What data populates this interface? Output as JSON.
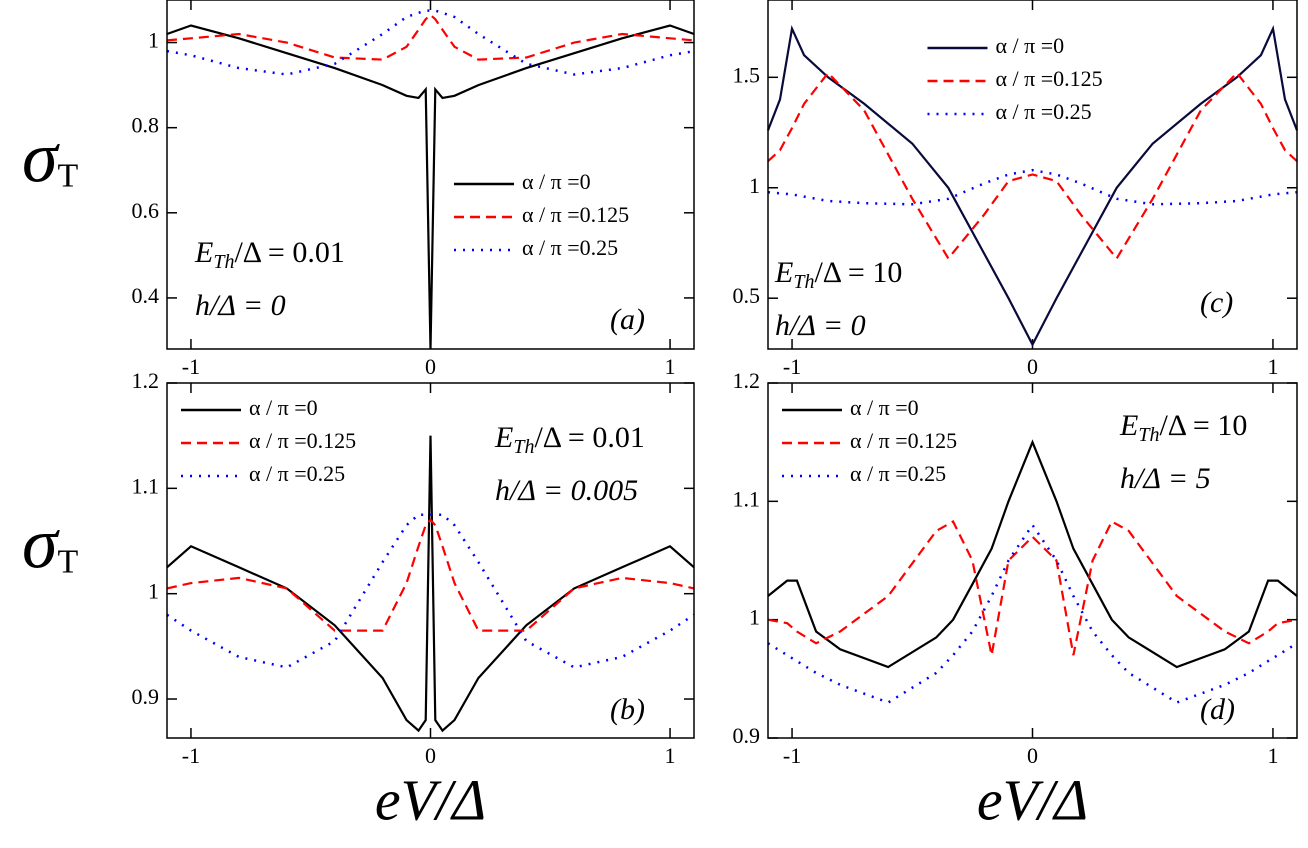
{
  "chart_data": [
    {
      "type": "line",
      "legend": "lower right",
      "ylabel": {
        "text": "σ",
        "sub": "T"
      },
      "annotations": [
        {
          "text": "E",
          "sub": "Th",
          "rest": "/Δ = 0.01"
        },
        {
          "text": "h/Δ = 0"
        },
        {
          "text": "(a)"
        }
      ],
      "xlim": [
        -1.1,
        1.1
      ],
      "xticks": [
        -1,
        0,
        1
      ],
      "ylim": [
        0.28,
        1.1
      ],
      "yticks": [
        0.4,
        0.6,
        0.8,
        1
      ],
      "x": [
        -1.1,
        -1,
        -0.8,
        -0.6,
        -0.4,
        -0.2,
        -0.1,
        -0.05,
        -0.02,
        0,
        0.02,
        0.05,
        0.1,
        0.2,
        0.4,
        0.6,
        0.8,
        1,
        1.1
      ],
      "series": [
        {
          "name": "α / π =0",
          "color": "#000000",
          "dash": "solid",
          "values": [
            1.02,
            1.04,
            1.01,
            0.975,
            0.94,
            0.9,
            0.875,
            0.87,
            0.89,
            0.28,
            0.89,
            0.87,
            0.875,
            0.9,
            0.94,
            0.975,
            1.01,
            1.04,
            1.02
          ]
        },
        {
          "name": "α / π =0.125",
          "color": "#ff0000",
          "dash": "dash",
          "values": [
            1.005,
            1.01,
            1.02,
            1.0,
            0.965,
            0.96,
            0.99,
            1.03,
            1.055,
            1.065,
            1.055,
            1.03,
            0.99,
            0.96,
            0.965,
            1.0,
            1.02,
            1.01,
            1.005
          ]
        },
        {
          "name": "α / π =0.25",
          "color": "#0000ff",
          "dash": "dot",
          "values": [
            0.98,
            0.97,
            0.94,
            0.925,
            0.95,
            1.02,
            1.06,
            1.07,
            1.075,
            1.075,
            1.075,
            1.07,
            1.06,
            1.02,
            0.95,
            0.925,
            0.94,
            0.97,
            0.98
          ]
        }
      ]
    },
    {
      "type": "line",
      "legend": "upper left",
      "ylabel": {
        "text": "σ",
        "sub": "T"
      },
      "xlabel": "eV/Δ",
      "annotations": [
        {
          "text": "E",
          "sub": "Th",
          "rest": "/Δ = 0.01"
        },
        {
          "text": "h/Δ = 0.005"
        },
        {
          "text": "(b)"
        }
      ],
      "xlim": [
        -1.1,
        1.1
      ],
      "xticks": [
        -1,
        0,
        1
      ],
      "ylim": [
        0.863,
        1.2
      ],
      "yticks": [
        0.9,
        1,
        1.1,
        1.2
      ],
      "x": [
        -1.1,
        -1,
        -0.8,
        -0.6,
        -0.4,
        -0.2,
        -0.1,
        -0.05,
        -0.02,
        0,
        0.02,
        0.05,
        0.1,
        0.2,
        0.4,
        0.6,
        0.8,
        1,
        1.1
      ],
      "series": [
        {
          "name": "α / π =0",
          "color": "#000000",
          "dash": "solid",
          "values": [
            1.025,
            1.045,
            1.025,
            1.005,
            0.97,
            0.92,
            0.88,
            0.87,
            0.88,
            1.15,
            0.88,
            0.87,
            0.88,
            0.92,
            0.97,
            1.005,
            1.025,
            1.045,
            1.025
          ]
        },
        {
          "name": "α / π =0.125",
          "color": "#ff0000",
          "dash": "dash",
          "values": [
            1.005,
            1.01,
            1.015,
            1.005,
            0.965,
            0.965,
            1.01,
            1.045,
            1.065,
            1.07,
            1.065,
            1.045,
            1.01,
            0.965,
            0.965,
            1.005,
            1.015,
            1.01,
            1.005
          ]
        },
        {
          "name": "α / π =0.25",
          "color": "#0000ff",
          "dash": "dot",
          "values": [
            0.98,
            0.965,
            0.94,
            0.93,
            0.955,
            1.03,
            1.065,
            1.075,
            1.075,
            1.075,
            1.075,
            1.075,
            1.065,
            1.03,
            0.955,
            0.93,
            0.94,
            0.965,
            0.98
          ]
        }
      ]
    },
    {
      "type": "line",
      "legend": "upper center",
      "annotations": [
        {
          "text": "E",
          "sub": "Th",
          "rest": "/Δ = 10"
        },
        {
          "text": "h/Δ = 0"
        },
        {
          "text": "(c)"
        }
      ],
      "xlim": [
        -1.1,
        1.1
      ],
      "xticks": [
        -1,
        0,
        1
      ],
      "ylim": [
        0.27,
        1.85
      ],
      "yticks": [
        0.5,
        1,
        1.5
      ],
      "x": [
        -1.1,
        -1.05,
        -1,
        -0.95,
        -0.85,
        -0.7,
        -0.5,
        -0.35,
        -0.2,
        -0.1,
        0,
        0.1,
        0.2,
        0.35,
        0.5,
        0.7,
        0.85,
        0.95,
        1,
        1.05,
        1.1
      ],
      "series": [
        {
          "name": "α / π =0",
          "color": "#0a0a3c",
          "dash": "solid",
          "values": [
            1.26,
            1.4,
            1.72,
            1.6,
            1.5,
            1.38,
            1.2,
            1.0,
            0.7,
            0.5,
            0.29,
            0.5,
            0.7,
            1.0,
            1.2,
            1.38,
            1.5,
            1.6,
            1.72,
            1.4,
            1.26
          ]
        },
        {
          "name": "α / π =0.125",
          "color": "#ff0000",
          "dash": "dash",
          "values": [
            1.12,
            1.17,
            1.27,
            1.38,
            1.52,
            1.35,
            0.95,
            0.68,
            0.88,
            1.03,
            1.06,
            1.03,
            0.88,
            0.68,
            0.95,
            1.35,
            1.52,
            1.38,
            1.27,
            1.17,
            1.12
          ]
        },
        {
          "name": "α / π =0.25",
          "color": "#0000ff",
          "dash": "dot",
          "values": [
            0.98,
            0.975,
            0.97,
            0.96,
            0.94,
            0.93,
            0.925,
            0.95,
            1.02,
            1.06,
            1.08,
            1.06,
            1.02,
            0.95,
            0.925,
            0.93,
            0.94,
            0.96,
            0.97,
            0.975,
            0.98
          ]
        }
      ]
    },
    {
      "type": "line",
      "legend": "upper left",
      "xlabel": "eV/Δ",
      "annotations": [
        {
          "text": "E",
          "sub": "Th",
          "rest": "/Δ = 10"
        },
        {
          "text": "h/Δ = 5"
        },
        {
          "text": "(d)"
        }
      ],
      "xlim": [
        -1.1,
        1.1
      ],
      "xticks": [
        -1,
        0,
        1
      ],
      "ylim": [
        0.9,
        1.2
      ],
      "yticks": [
        0.9,
        1,
        1.1,
        1.2
      ],
      "x": [
        -1.1,
        -1.02,
        -0.98,
        -0.9,
        -0.8,
        -0.6,
        -0.4,
        -0.33,
        -0.25,
        -0.17,
        -0.1,
        0,
        0.1,
        0.17,
        0.25,
        0.33,
        0.4,
        0.6,
        0.8,
        0.9,
        0.98,
        1.02,
        1.1
      ],
      "series": [
        {
          "name": "α / π =0",
          "color": "#000000",
          "dash": "solid",
          "values": [
            1.02,
            1.033,
            1.033,
            0.99,
            0.975,
            0.96,
            0.985,
            1.0,
            1.03,
            1.06,
            1.1,
            1.15,
            1.1,
            1.06,
            1.03,
            1.0,
            0.985,
            0.96,
            0.975,
            0.99,
            1.033,
            1.033,
            1.02
          ]
        },
        {
          "name": "α / π =0.125",
          "color": "#ff0000",
          "dash": "dash",
          "values": [
            1.0,
            0.997,
            0.99,
            0.98,
            0.99,
            1.02,
            1.075,
            1.083,
            1.05,
            0.97,
            1.05,
            1.07,
            1.05,
            0.97,
            1.05,
            1.083,
            1.075,
            1.02,
            0.99,
            0.98,
            0.99,
            0.997,
            1.0
          ]
        },
        {
          "name": "α / π =0.25",
          "color": "#0000ff",
          "dash": "dot",
          "values": [
            0.98,
            0.97,
            0.965,
            0.955,
            0.945,
            0.93,
            0.955,
            0.97,
            0.99,
            1.02,
            1.05,
            1.08,
            1.05,
            1.02,
            0.99,
            0.97,
            0.955,
            0.93,
            0.945,
            0.955,
            0.965,
            0.97,
            0.98
          ]
        }
      ]
    }
  ]
}
